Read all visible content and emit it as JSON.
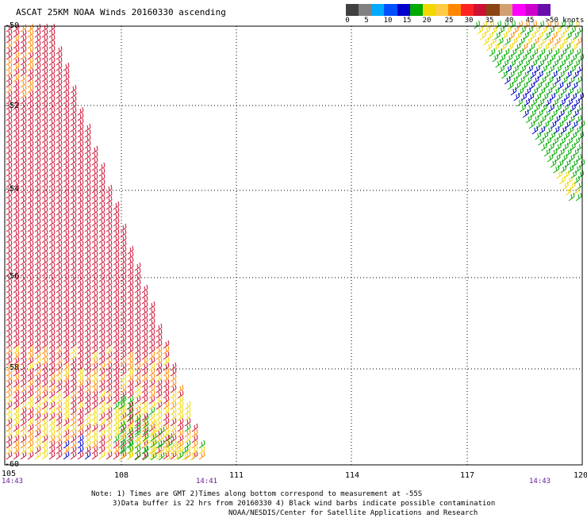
{
  "title": "ASCAT 25KM NOAA Winds 20160330 ascending",
  "colorbar": {
    "colors": [
      "#404040",
      "#808080",
      "#00aaff",
      "#0050ff",
      "#0000cc",
      "#00aa00",
      "#f0d800",
      "#ffcc44",
      "#ff8800",
      "#ff2222",
      "#cc1133",
      "#8b4513",
      "#d2a070",
      "#ff00ff",
      "#cc00cc",
      "#6a0dad"
    ],
    "labels": [
      "0",
      "5",
      "10",
      "15",
      "20",
      "25",
      "30",
      "35",
      "40",
      "45",
      ">50 knots"
    ]
  },
  "map": {
    "lat_labels": [
      "-50",
      "-52",
      "-54",
      "-56",
      "-58",
      "-60"
    ],
    "lon_labels": [
      "105",
      "108",
      "111",
      "114",
      "117",
      "120"
    ],
    "time_labels": [
      "14:43",
      "14:41",
      "14:43"
    ]
  },
  "notes": {
    "line1": "Note: 1) Times are GMT 2)Times along bottom correspond to measurement at -55S",
    "line2": "3)Data buffer is 22 hrs from 20160330 4) Black wind barbs indicate possible contamination",
    "line3": "NOAA/NESDIS/Center for Satellite Applications and Research"
  }
}
